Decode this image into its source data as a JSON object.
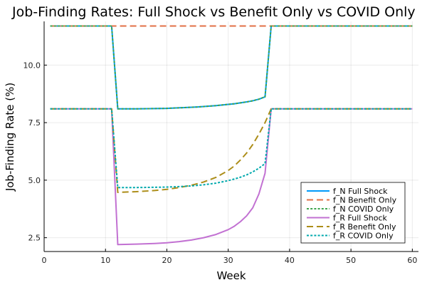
{
  "chart_data": {
    "type": "line",
    "title": "Job-Finding Rates: Full Shock vs Benefit Only vs COVID Only",
    "xlabel": "Week",
    "ylabel": "Job-Finding Rate (%)",
    "xlim": [
      0,
      61
    ],
    "ylim": [
      1.9,
      11.9
    ],
    "xticks": [
      0,
      10,
      20,
      30,
      40,
      50,
      60
    ],
    "xtick_labels": [
      "0",
      "10",
      "20",
      "30",
      "40",
      "50",
      "60"
    ],
    "yticks": [
      2.5,
      5.0,
      7.5,
      10.0
    ],
    "ytick_labels": [
      "2.5",
      "5.0",
      "7.5",
      "10.0"
    ],
    "grid": true,
    "legend_position": "bottom-right",
    "series": [
      {
        "name": "f_N Full Shock",
        "color": "#009AFA",
        "style": "solid",
        "x": [
          1,
          11,
          12,
          15,
          20,
          25,
          28,
          31,
          33,
          34,
          35,
          36,
          37,
          60
        ],
        "y": [
          11.7,
          11.7,
          8.1,
          8.1,
          8.12,
          8.18,
          8.24,
          8.32,
          8.4,
          8.45,
          8.52,
          8.62,
          11.7,
          11.7
        ]
      },
      {
        "name": "f_N Benefit Only",
        "color": "#E26F46",
        "style": "dashed",
        "x": [
          1,
          60
        ],
        "y": [
          11.7,
          11.7
        ]
      },
      {
        "name": "f_N COVID Only",
        "color": "#3EA44E",
        "style": "dotted",
        "x": [
          1,
          11,
          12,
          15,
          20,
          25,
          28,
          31,
          33,
          34,
          35,
          36,
          37,
          60
        ],
        "y": [
          11.7,
          11.7,
          8.1,
          8.1,
          8.12,
          8.18,
          8.24,
          8.32,
          8.4,
          8.45,
          8.52,
          8.62,
          11.7,
          11.7
        ]
      },
      {
        "name": "f_R Full Shock",
        "color": "#C271D2",
        "style": "solid",
        "x": [
          1,
          11,
          12,
          15,
          18,
          20,
          22,
          24,
          26,
          28,
          30,
          31,
          32,
          33,
          34,
          35,
          36,
          37,
          60
        ],
        "y": [
          8.1,
          8.1,
          2.2,
          2.22,
          2.25,
          2.28,
          2.33,
          2.4,
          2.5,
          2.64,
          2.85,
          3.0,
          3.2,
          3.45,
          3.8,
          4.4,
          5.3,
          8.1,
          8.1
        ]
      },
      {
        "name": "f_R Benefit Only",
        "color": "#AC8D18",
        "style": "dashed",
        "x": [
          1,
          11,
          12,
          15,
          18,
          20,
          22,
          24,
          26,
          28,
          30,
          31,
          32,
          33,
          34,
          35,
          36,
          37,
          60
        ],
        "y": [
          8.1,
          8.1,
          4.47,
          4.5,
          4.55,
          4.6,
          4.68,
          4.78,
          4.92,
          5.12,
          5.42,
          5.62,
          5.88,
          6.18,
          6.55,
          7.0,
          7.5,
          8.1,
          8.1
        ]
      },
      {
        "name": "f_R COVID Only",
        "color": "#00A9AD",
        "style": "dotted",
        "x": [
          1,
          11,
          12,
          15,
          18,
          20,
          22,
          24,
          26,
          28,
          30,
          31,
          32,
          33,
          34,
          35,
          36,
          37,
          60
        ],
        "y": [
          8.1,
          8.1,
          4.68,
          4.68,
          4.69,
          4.7,
          4.72,
          4.75,
          4.8,
          4.87,
          4.98,
          5.05,
          5.13,
          5.23,
          5.36,
          5.52,
          5.72,
          8.1,
          8.1
        ]
      }
    ]
  }
}
